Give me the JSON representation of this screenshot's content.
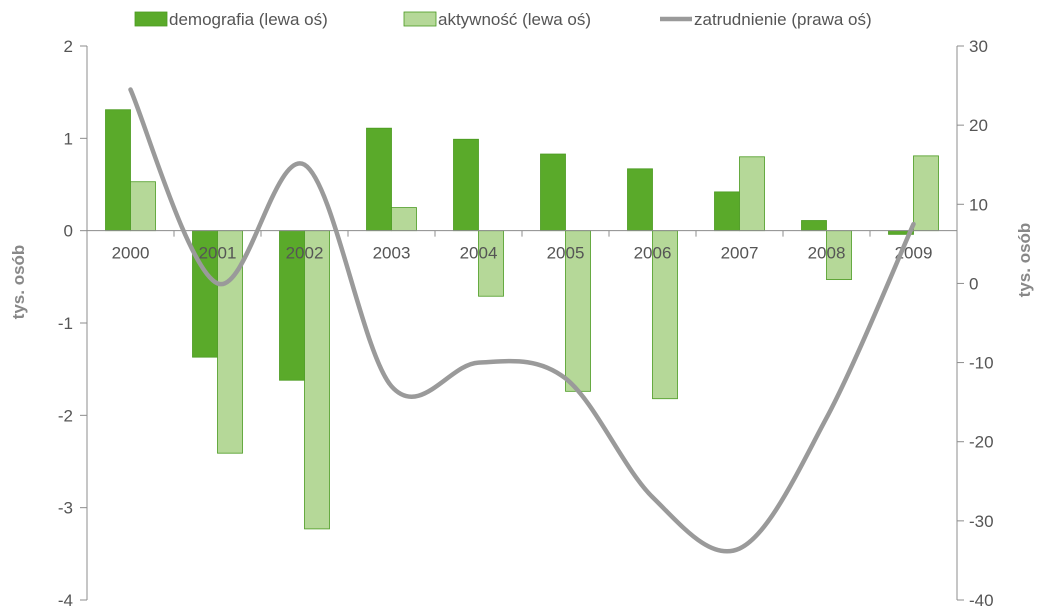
{
  "chart_data": {
    "type": "bar",
    "categories": [
      "2000",
      "2001",
      "2002",
      "2003",
      "2004",
      "2005",
      "2006",
      "2007",
      "2008",
      "2009"
    ],
    "series": [
      {
        "name": "demografia (lewa oś)",
        "kind": "bar",
        "axis": "left",
        "color": "#5aaa2a",
        "values": [
          1.31,
          -1.37,
          -1.62,
          1.11,
          0.99,
          0.83,
          0.67,
          0.42,
          0.11,
          -0.04
        ]
      },
      {
        "name": "aktywność (lewa oś)",
        "kind": "bar",
        "axis": "left",
        "color": "#b5d898",
        "values": [
          0.53,
          -2.41,
          -3.23,
          0.25,
          -0.71,
          -1.74,
          -1.82,
          0.8,
          -0.53,
          0.81
        ]
      },
      {
        "name": "zatrudnienie (prawa oś)",
        "kind": "line",
        "axis": "right",
        "color": "#9a9a9a",
        "values": [
          24.5,
          0.0,
          15.0,
          -13.0,
          -10.0,
          -12.0,
          -27.0,
          -33.5,
          -17.0,
          7.5
        ]
      }
    ],
    "y_left": {
      "label": "tys. osób",
      "lim": [
        -4,
        2
      ],
      "ticks": [
        "-4",
        "-3",
        "-2",
        "-1",
        "0",
        "1",
        "2"
      ]
    },
    "y_right": {
      "label": "tys. osób",
      "lim": [
        -40,
        30
      ],
      "ticks": [
        "-40",
        "-30",
        "-20",
        "-10",
        "0",
        "10",
        "20",
        "30"
      ]
    },
    "legend_position": "top",
    "grid": false
  }
}
